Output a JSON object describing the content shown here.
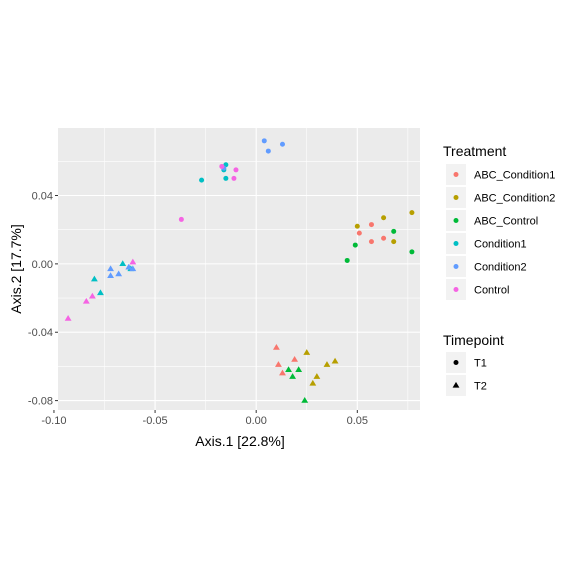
{
  "chart_data": {
    "type": "scatter",
    "xlabel": "Axis.1   [22.8%]",
    "ylabel": "Axis.2   [17.7%]",
    "xlim": [
      -0.098,
      0.081
    ],
    "ylim": [
      -0.0855,
      0.0795
    ],
    "x_ticks": [
      -0.1,
      -0.05,
      0.0,
      0.05
    ],
    "x_tick_labels": [
      "-0.10",
      "-0.05",
      "0.00",
      "0.05"
    ],
    "y_ticks": [
      -0.08,
      -0.04,
      0.0,
      0.04
    ],
    "y_tick_labels": [
      "-0.08",
      "-0.04",
      "0.00",
      "0.04"
    ],
    "grid": true,
    "legend_placement": "right",
    "treatment_legend": {
      "title": "Treatment",
      "items": [
        {
          "label": "ABC_Condition1",
          "color": "#F8766D"
        },
        {
          "label": "ABC_Condition2",
          "color": "#B79F00"
        },
        {
          "label": "ABC_Control",
          "color": "#00BA38"
        },
        {
          "label": "Condition1",
          "color": "#00BFC4"
        },
        {
          "label": "Condition2",
          "color": "#619CFF"
        },
        {
          "label": "Control",
          "color": "#F564E3"
        }
      ]
    },
    "timepoint_legend": {
      "title": "Timepoint",
      "items": [
        {
          "label": "T1",
          "shape": "circle"
        },
        {
          "label": "T2",
          "shape": "triangle"
        }
      ]
    },
    "points": [
      {
        "x": 0.051,
        "y": 0.018,
        "treatment": "ABC_Condition1",
        "timepoint": "T1"
      },
      {
        "x": 0.057,
        "y": 0.023,
        "treatment": "ABC_Condition1",
        "timepoint": "T1"
      },
      {
        "x": 0.057,
        "y": 0.013,
        "treatment": "ABC_Condition1",
        "timepoint": "T1"
      },
      {
        "x": 0.063,
        "y": 0.015,
        "treatment": "ABC_Condition1",
        "timepoint": "T1"
      },
      {
        "x": 0.05,
        "y": 0.022,
        "treatment": "ABC_Condition2",
        "timepoint": "T1"
      },
      {
        "x": 0.063,
        "y": 0.027,
        "treatment": "ABC_Condition2",
        "timepoint": "T1"
      },
      {
        "x": 0.068,
        "y": 0.013,
        "treatment": "ABC_Condition2",
        "timepoint": "T1"
      },
      {
        "x": 0.077,
        "y": 0.03,
        "treatment": "ABC_Condition2",
        "timepoint": "T1"
      },
      {
        "x": 0.045,
        "y": 0.002,
        "treatment": "ABC_Control",
        "timepoint": "T1"
      },
      {
        "x": 0.049,
        "y": 0.011,
        "treatment": "ABC_Control",
        "timepoint": "T1"
      },
      {
        "x": 0.068,
        "y": 0.019,
        "treatment": "ABC_Control",
        "timepoint": "T1"
      },
      {
        "x": 0.077,
        "y": 0.007,
        "treatment": "ABC_Control",
        "timepoint": "T1"
      },
      {
        "x": -0.027,
        "y": 0.049,
        "treatment": "Condition1",
        "timepoint": "T1"
      },
      {
        "x": -0.016,
        "y": 0.055,
        "treatment": "Condition1",
        "timepoint": "T1"
      },
      {
        "x": -0.015,
        "y": 0.058,
        "treatment": "Condition1",
        "timepoint": "T1"
      },
      {
        "x": -0.015,
        "y": 0.05,
        "treatment": "Condition1",
        "timepoint": "T1"
      },
      {
        "x": 0.004,
        "y": 0.072,
        "treatment": "Condition2",
        "timepoint": "T1"
      },
      {
        "x": 0.006,
        "y": 0.066,
        "treatment": "Condition2",
        "timepoint": "T1"
      },
      {
        "x": 0.013,
        "y": 0.07,
        "treatment": "Condition2",
        "timepoint": "T1"
      },
      {
        "x": -0.016,
        "y": 0.056,
        "treatment": "Condition2",
        "timepoint": "T1"
      },
      {
        "x": -0.037,
        "y": 0.026,
        "treatment": "Control",
        "timepoint": "T1"
      },
      {
        "x": -0.017,
        "y": 0.057,
        "treatment": "Control",
        "timepoint": "T1"
      },
      {
        "x": -0.01,
        "y": 0.055,
        "treatment": "Control",
        "timepoint": "T1"
      },
      {
        "x": -0.011,
        "y": 0.05,
        "treatment": "Control",
        "timepoint": "T1"
      },
      {
        "x": 0.01,
        "y": -0.049,
        "treatment": "ABC_Condition1",
        "timepoint": "T2"
      },
      {
        "x": 0.011,
        "y": -0.059,
        "treatment": "ABC_Condition1",
        "timepoint": "T2"
      },
      {
        "x": 0.019,
        "y": -0.056,
        "treatment": "ABC_Condition1",
        "timepoint": "T2"
      },
      {
        "x": 0.013,
        "y": -0.064,
        "treatment": "ABC_Condition1",
        "timepoint": "T2"
      },
      {
        "x": 0.025,
        "y": -0.052,
        "treatment": "ABC_Condition2",
        "timepoint": "T2"
      },
      {
        "x": 0.03,
        "y": -0.066,
        "treatment": "ABC_Condition2",
        "timepoint": "T2"
      },
      {
        "x": 0.028,
        "y": -0.07,
        "treatment": "ABC_Condition2",
        "timepoint": "T2"
      },
      {
        "x": 0.035,
        "y": -0.059,
        "treatment": "ABC_Condition2",
        "timepoint": "T2"
      },
      {
        "x": 0.039,
        "y": -0.057,
        "treatment": "ABC_Condition2",
        "timepoint": "T2"
      },
      {
        "x": 0.016,
        "y": -0.062,
        "treatment": "ABC_Control",
        "timepoint": "T2"
      },
      {
        "x": 0.021,
        "y": -0.062,
        "treatment": "ABC_Control",
        "timepoint": "T2"
      },
      {
        "x": 0.018,
        "y": -0.066,
        "treatment": "ABC_Control",
        "timepoint": "T2"
      },
      {
        "x": 0.024,
        "y": -0.08,
        "treatment": "ABC_Control",
        "timepoint": "T2"
      },
      {
        "x": -0.08,
        "y": -0.009,
        "treatment": "Condition1",
        "timepoint": "T2"
      },
      {
        "x": -0.077,
        "y": -0.017,
        "treatment": "Condition1",
        "timepoint": "T2"
      },
      {
        "x": -0.066,
        "y": 0.0,
        "treatment": "Condition1",
        "timepoint": "T2"
      },
      {
        "x": -0.062,
        "y": -0.003,
        "treatment": "Condition1",
        "timepoint": "T2"
      },
      {
        "x": -0.072,
        "y": -0.003,
        "treatment": "Condition2",
        "timepoint": "T2"
      },
      {
        "x": -0.072,
        "y": -0.007,
        "treatment": "Condition2",
        "timepoint": "T2"
      },
      {
        "x": -0.068,
        "y": -0.006,
        "treatment": "Condition2",
        "timepoint": "T2"
      },
      {
        "x": -0.063,
        "y": -0.002,
        "treatment": "Condition2",
        "timepoint": "T2"
      },
      {
        "x": -0.061,
        "y": -0.003,
        "treatment": "Condition2",
        "timepoint": "T2"
      },
      {
        "x": -0.093,
        "y": -0.032,
        "treatment": "Control",
        "timepoint": "T2"
      },
      {
        "x": -0.084,
        "y": -0.022,
        "treatment": "Control",
        "timepoint": "T2"
      },
      {
        "x": -0.081,
        "y": -0.019,
        "treatment": "Control",
        "timepoint": "T2"
      },
      {
        "x": -0.061,
        "y": 0.001,
        "treatment": "Control",
        "timepoint": "T2"
      }
    ]
  }
}
